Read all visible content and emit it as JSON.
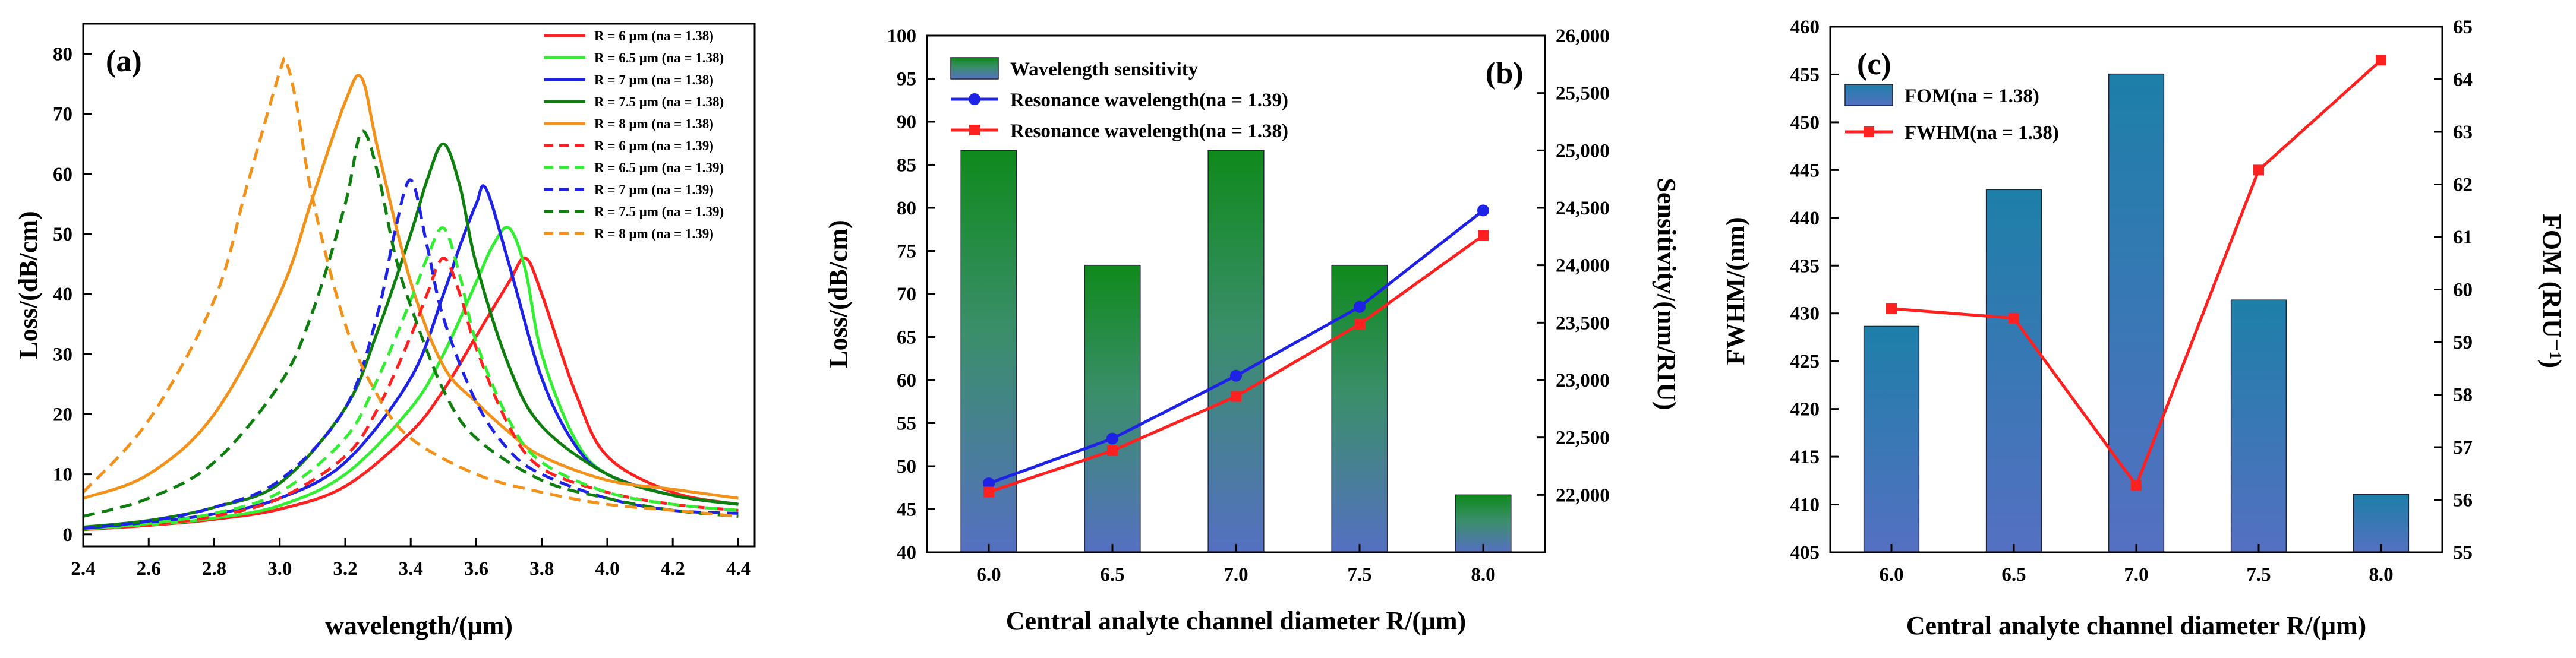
{
  "chart_data": [
    {
      "type": "line",
      "panel_label": "(a)",
      "xlabel": "wavelength/(μm)",
      "ylabel": "Loss/(dB/cm)",
      "xlim": [
        2.4,
        4.45
      ],
      "ylim": [
        -2,
        85
      ],
      "xticks": [
        "2.4",
        "2.6",
        "2.8",
        "3.0",
        "3.2",
        "3.4",
        "3.6",
        "3.8",
        "4.0",
        "4.2",
        "4.4"
      ],
      "yticks": [
        "0",
        "10",
        "20",
        "30",
        "40",
        "50",
        "60",
        "70",
        "80"
      ],
      "legend_position": "top-right",
      "series": [
        {
          "name": "R = 6 μm (na = 1.38)",
          "color": "#ff2020",
          "dash": false,
          "x": [
            2.4,
            2.6,
            2.8,
            3.0,
            3.2,
            3.4,
            3.5,
            3.6,
            3.7,
            3.75,
            3.8,
            3.9,
            4.0,
            4.2,
            4.4
          ],
          "y": [
            0.8,
            1.5,
            2.5,
            4.2,
            8,
            17,
            24,
            33,
            42,
            46,
            40,
            24,
            13,
            7,
            5
          ]
        },
        {
          "name": "R = 6.5 μm (na = 1.38)",
          "color": "#33ee33",
          "dash": false,
          "x": [
            2.4,
            2.6,
            2.8,
            3.0,
            3.2,
            3.4,
            3.5,
            3.6,
            3.65,
            3.7,
            3.75,
            3.8,
            3.9,
            4.0,
            4.2,
            4.4
          ],
          "y": [
            0.9,
            1.6,
            2.7,
            4.8,
            10,
            21,
            30,
            42,
            48,
            51,
            44,
            30,
            16,
            10,
            6.5,
            5
          ]
        },
        {
          "name": "R = 7 μm (na = 1.38)",
          "color": "#1e22e6",
          "dash": false,
          "x": [
            2.4,
            2.6,
            2.8,
            3.0,
            3.2,
            3.4,
            3.5,
            3.55,
            3.6,
            3.63,
            3.7,
            3.8,
            3.9,
            4.0,
            4.2,
            4.4
          ],
          "y": [
            1,
            2,
            3.4,
            6,
            12,
            26,
            40,
            48,
            55,
            57.5,
            45,
            26,
            15,
            10,
            6.5,
            5
          ]
        },
        {
          "name": "R = 7.5 μm (na = 1.38)",
          "color": "#0e7e0e",
          "dash": false,
          "x": [
            2.4,
            2.6,
            2.8,
            3.0,
            3.2,
            3.3,
            3.4,
            3.45,
            3.5,
            3.55,
            3.6,
            3.7,
            3.8,
            4.0,
            4.2,
            4.4
          ],
          "y": [
            1.2,
            2.3,
            4.5,
            8.5,
            21,
            34,
            50,
            59,
            65,
            58,
            45,
            28,
            18,
            10,
            6.5,
            5
          ]
        },
        {
          "name": "R = 8 μm (na = 1.38)",
          "color": "#f2921b",
          "dash": false,
          "x": [
            2.4,
            2.6,
            2.8,
            3.0,
            3.1,
            3.2,
            3.25,
            3.3,
            3.4,
            3.5,
            3.6,
            3.7,
            3.8,
            4.0,
            4.2,
            4.4
          ],
          "y": [
            6,
            10,
            20,
            40,
            56,
            72,
            76,
            64,
            42,
            28,
            22,
            17,
            13,
            9,
            7.5,
            6
          ]
        },
        {
          "name": "R = 6 μm (na = 1.39)",
          "color": "#ff2020",
          "dash": true,
          "x": [
            2.4,
            2.6,
            2.8,
            3.0,
            3.2,
            3.3,
            3.4,
            3.45,
            3.5,
            3.55,
            3.6,
            3.7,
            3.8,
            4.0,
            4.2,
            4.4
          ],
          "y": [
            0.8,
            1.6,
            3,
            6,
            13,
            21,
            33,
            40,
            46,
            40,
            31,
            18,
            11,
            7,
            5,
            4
          ]
        },
        {
          "name": "R = 6.5 μm (na = 1.39)",
          "color": "#33ee33",
          "dash": true,
          "x": [
            2.4,
            2.6,
            2.8,
            3.0,
            3.2,
            3.3,
            3.4,
            3.45,
            3.5,
            3.55,
            3.6,
            3.7,
            3.8,
            4.0,
            4.2,
            4.4
          ],
          "y": [
            0.9,
            1.8,
            3.5,
            7,
            16,
            26,
            39,
            46,
            51,
            43,
            32,
            19,
            12,
            7,
            5,
            4
          ]
        },
        {
          "name": "R = 7 μm (na = 1.39)",
          "color": "#1e22e6",
          "dash": true,
          "x": [
            2.4,
            2.6,
            2.8,
            3.0,
            3.2,
            3.3,
            3.35,
            3.4,
            3.45,
            3.5,
            3.6,
            3.7,
            3.8,
            4.0,
            4.2,
            4.4
          ],
          "y": [
            1,
            2.2,
            4.5,
            9,
            21,
            37,
            50,
            59,
            48,
            36,
            22,
            14,
            10,
            6,
            4,
            3.5
          ]
        },
        {
          "name": "R = 7.5 μm (na = 1.39)",
          "color": "#0e7e0e",
          "dash": true,
          "x": [
            2.4,
            2.6,
            2.8,
            3.0,
            3.1,
            3.2,
            3.25,
            3.3,
            3.35,
            3.4,
            3.5,
            3.6,
            3.8,
            4.0,
            4.2,
            4.4
          ],
          "y": [
            3,
            6,
            12,
            25,
            37,
            55,
            67,
            60,
            47,
            38,
            24,
            16,
            9,
            6,
            4,
            3
          ]
        },
        {
          "name": "R = 8 μm (na = 1.39)",
          "color": "#f2921b",
          "dash": true,
          "x": [
            2.4,
            2.6,
            2.8,
            2.9,
            3.0,
            3.02,
            3.05,
            3.1,
            3.2,
            3.3,
            3.4,
            3.6,
            3.8,
            4.0,
            4.2,
            4.4
          ],
          "y": [
            7,
            19,
            39,
            58,
            77,
            78.5,
            72,
            56,
            35,
            23,
            16,
            10,
            7,
            5,
            4,
            3
          ]
        }
      ]
    },
    {
      "type": "bar",
      "panel_label": "(b)",
      "xlabel": "Central analyte channel diameter R/(μm)",
      "ylabel": "Loss/(dB/cm)",
      "ylabel_right": "Sensitivity/(nm/RIU)",
      "categories": [
        "6.0",
        "6.5",
        "7.0",
        "7.5",
        "8.0"
      ],
      "ylim": [
        40,
        100
      ],
      "ylim_right": [
        21500,
        26000
      ],
      "yticks": [
        "40",
        "45",
        "50",
        "55",
        "60",
        "65",
        "70",
        "75",
        "80",
        "85",
        "90",
        "95",
        "100"
      ],
      "yticks_right": [
        "22,000",
        "22,500",
        "23,000",
        "23,500",
        "24,000",
        "24,500",
        "25,000",
        "25,500",
        "26,000"
      ],
      "legend_position": "top-left",
      "bars": {
        "name": "Wavelength sensitivity",
        "axis": "right",
        "values": [
          25000,
          24000,
          25000,
          24000,
          22000
        ]
      },
      "series": [
        {
          "name": "Resonance wavelength(na = 1.39)",
          "axis": "left",
          "color": "#1e22e6",
          "marker": "circle",
          "values": [
            48.0,
            53.2,
            60.5,
            68.5,
            79.7
          ]
        },
        {
          "name": "Resonance wavelength(na = 1.38)",
          "axis": "left",
          "color": "#ff2020",
          "marker": "square",
          "values": [
            47.0,
            51.8,
            58.1,
            66.5,
            76.8
          ]
        }
      ]
    },
    {
      "type": "bar",
      "panel_label": "(c)",
      "xlabel": "Central analyte channel diameter R/(μm)",
      "ylabel": "FWHM/(nm)",
      "ylabel_right": "FOM (RIU⁻¹)",
      "categories": [
        "6.0",
        "6.5",
        "7.0",
        "7.5",
        "8.0"
      ],
      "ylim": [
        405,
        460
      ],
      "ylim_right": [
        55,
        65
      ],
      "yticks": [
        "405",
        "410",
        "415",
        "420",
        "425",
        "430",
        "435",
        "440",
        "445",
        "450",
        "455",
        "460"
      ],
      "yticks_right": [
        "55",
        "56",
        "57",
        "58",
        "59",
        "60",
        "61",
        "62",
        "63",
        "64",
        "65"
      ],
      "legend_position": "top-left",
      "bars": {
        "name": "FOM(na = 1.38)",
        "axis": "right",
        "values": [
          59.3,
          61.9,
          64.1,
          59.8,
          56.1
        ]
      },
      "series": [
        {
          "name": "FWHM(na = 1.38)",
          "axis": "left",
          "color": "#ff2020",
          "marker": "square",
          "values": [
            430.5,
            429.5,
            412.0,
            445.0,
            456.5
          ]
        }
      ]
    }
  ]
}
